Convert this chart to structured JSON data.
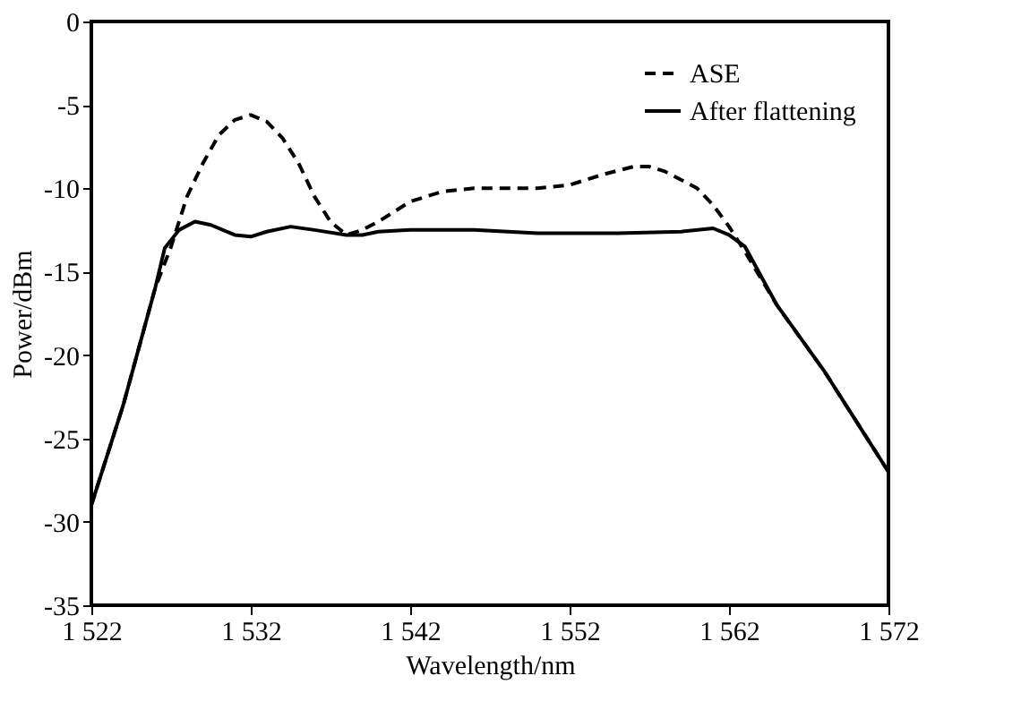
{
  "chart_data": {
    "type": "line",
    "xlabel": "Wavelength/nm",
    "ylabel": "Power/dBm",
    "xlim": [
      1522,
      1572
    ],
    "ylim": [
      -35,
      0
    ],
    "xticks": [
      {
        "value": 1522,
        "label": "1 522"
      },
      {
        "value": 1532,
        "label": "1 532"
      },
      {
        "value": 1542,
        "label": "1 542"
      },
      {
        "value": 1552,
        "label": "1 552"
      },
      {
        "value": 1562,
        "label": "1 562"
      },
      {
        "value": 1572,
        "label": "1 572"
      }
    ],
    "yticks": [
      -35,
      -30,
      -25,
      -20,
      -15,
      -10,
      -5,
      0
    ],
    "grid": false,
    "legend": "top right",
    "marker": "none",
    "series": [
      {
        "name": "ASE",
        "color": "#000000",
        "line_style": "dashed",
        "x": [
          1522,
          1524,
          1526,
          1527,
          1528,
          1529,
          1530,
          1531,
          1532,
          1533,
          1534,
          1535,
          1536,
          1537,
          1538,
          1539,
          1540,
          1542,
          1544,
          1546,
          1548,
          1550,
          1552,
          1554,
          1556,
          1557,
          1558,
          1560,
          1561,
          1562,
          1563,
          1565,
          1568,
          1570,
          1572
        ],
        "values": [
          -29,
          -23,
          -16,
          -13.5,
          -10.5,
          -8.5,
          -6.8,
          -5.9,
          -5.6,
          -6,
          -7,
          -8.5,
          -10.5,
          -12,
          -12.8,
          -12.5,
          -12,
          -10.8,
          -10.2,
          -10,
          -10,
          -10,
          -9.8,
          -9.2,
          -8.7,
          -8.7,
          -9,
          -10,
          -11,
          -12.3,
          -13.8,
          -17,
          -21,
          -24,
          -27
        ]
      },
      {
        "name": "After flattening",
        "color": "#000000",
        "line_style": "solid",
        "x": [
          1522,
          1524,
          1526,
          1526.6,
          1527.5,
          1528.5,
          1529.5,
          1531,
          1532,
          1533,
          1534.5,
          1536,
          1538,
          1539,
          1540,
          1542,
          1546,
          1550,
          1555,
          1559,
          1561,
          1562,
          1563,
          1565,
          1568,
          1570,
          1572
        ],
        "values": [
          -29,
          -23,
          -16,
          -13.6,
          -12.5,
          -12,
          -12.2,
          -12.8,
          -12.9,
          -12.6,
          -12.3,
          -12.5,
          -12.8,
          -12.8,
          -12.6,
          -12.5,
          -12.5,
          -12.7,
          -12.7,
          -12.6,
          -12.4,
          -12.8,
          -13.5,
          -17,
          -21,
          -24,
          -27
        ]
      }
    ]
  }
}
